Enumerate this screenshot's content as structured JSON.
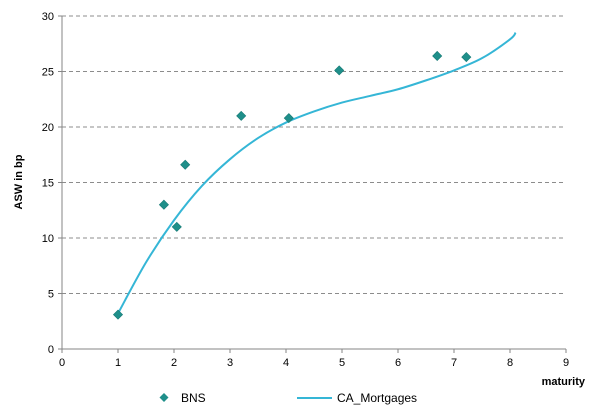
{
  "chart_data": {
    "type": "scatter",
    "xlabel": "maturity",
    "ylabel": "ASW in bp",
    "xlim": [
      0,
      9
    ],
    "ylim": [
      0,
      30
    ],
    "x_ticks": [
      0,
      1,
      2,
      3,
      4,
      5,
      6,
      7,
      8,
      9
    ],
    "y_ticks": [
      0,
      5,
      10,
      15,
      20,
      25,
      30
    ],
    "grid": "horizontal dashed",
    "legend_position": "bottom",
    "series": [
      {
        "name": "BNS",
        "kind": "scatter",
        "marker": "diamond",
        "color": "#1f8f8a",
        "x": [
          1.0,
          1.82,
          2.05,
          2.2,
          3.2,
          4.05,
          4.95,
          6.7,
          7.22
        ],
        "y": [
          3.1,
          13.0,
          11.0,
          16.6,
          21.0,
          20.8,
          25.1,
          26.4,
          26.3
        ]
      },
      {
        "name": "CA_Mortgages",
        "kind": "line",
        "color": "#35b6d6",
        "x": [
          1.0,
          1.5,
          2.0,
          2.5,
          3.0,
          3.5,
          4.0,
          4.5,
          5.0,
          5.5,
          6.0,
          6.5,
          7.0,
          7.5,
          8.0,
          8.1
        ],
        "y": [
          3.2,
          7.8,
          11.6,
          14.7,
          17.1,
          19.0,
          20.4,
          21.4,
          22.2,
          22.8,
          23.4,
          24.2,
          25.1,
          26.2,
          27.9,
          28.5
        ]
      }
    ]
  }
}
